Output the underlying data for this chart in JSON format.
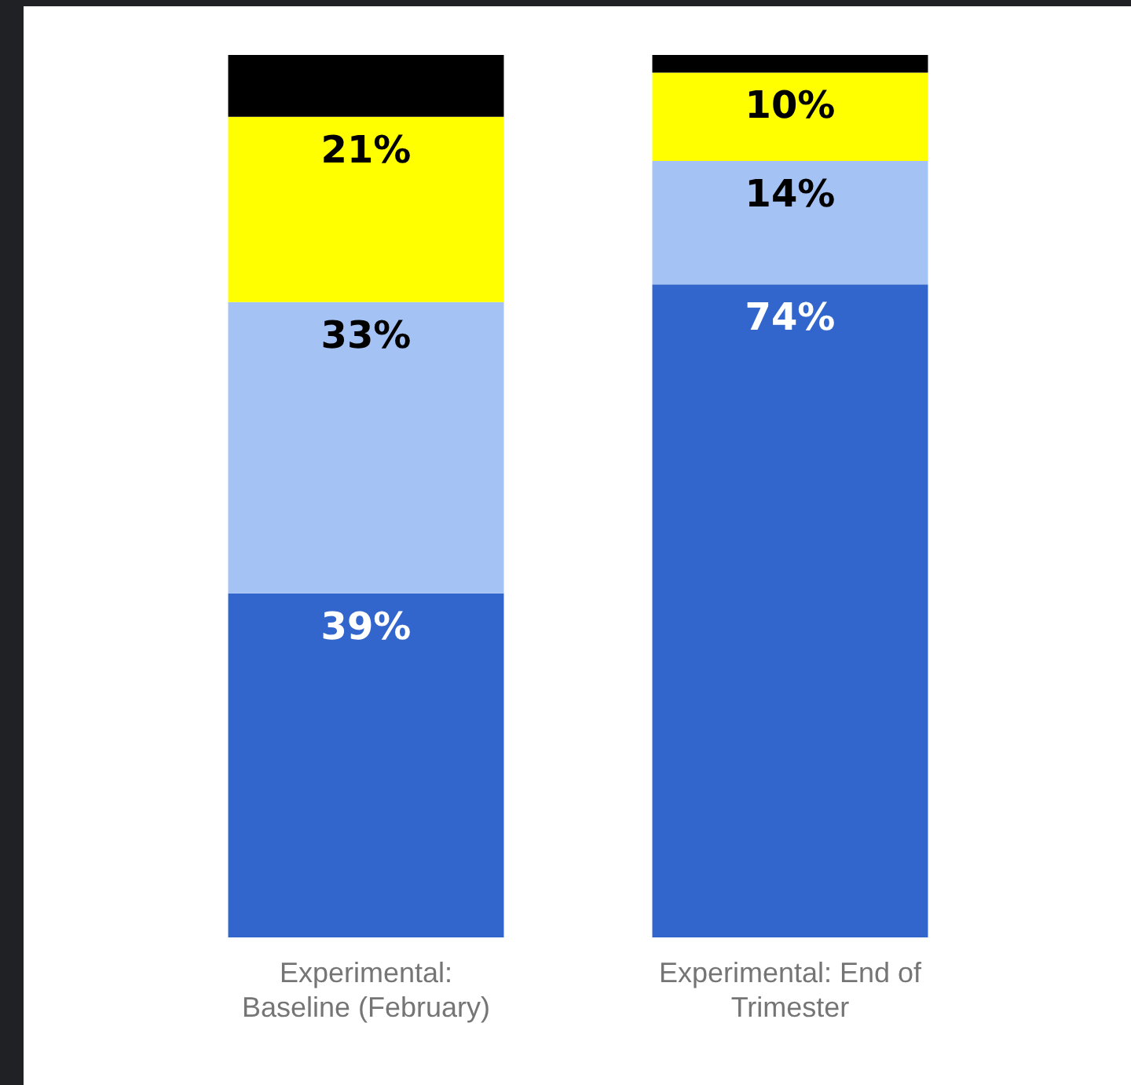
{
  "chart_data": {
    "type": "bar",
    "stacked": true,
    "categories": [
      "Experimental: Baseline (February)",
      "Experimental: End of Trimester"
    ],
    "ylim": [
      0,
      100
    ],
    "series": [
      {
        "color": "#3366cc",
        "values": [
          39,
          74
        ],
        "value_labels": [
          "39%",
          "74%"
        ]
      },
      {
        "color": "#a4c2f4",
        "values": [
          33,
          14
        ],
        "value_labels": [
          "33%",
          "14%"
        ]
      },
      {
        "color": "#ffff00",
        "values": [
          21,
          10
        ],
        "value_labels": [
          "21%",
          "10%"
        ]
      },
      {
        "color": "#000000",
        "values": [
          7,
          2
        ],
        "value_labels": [
          null,
          null
        ]
      }
    ]
  }
}
